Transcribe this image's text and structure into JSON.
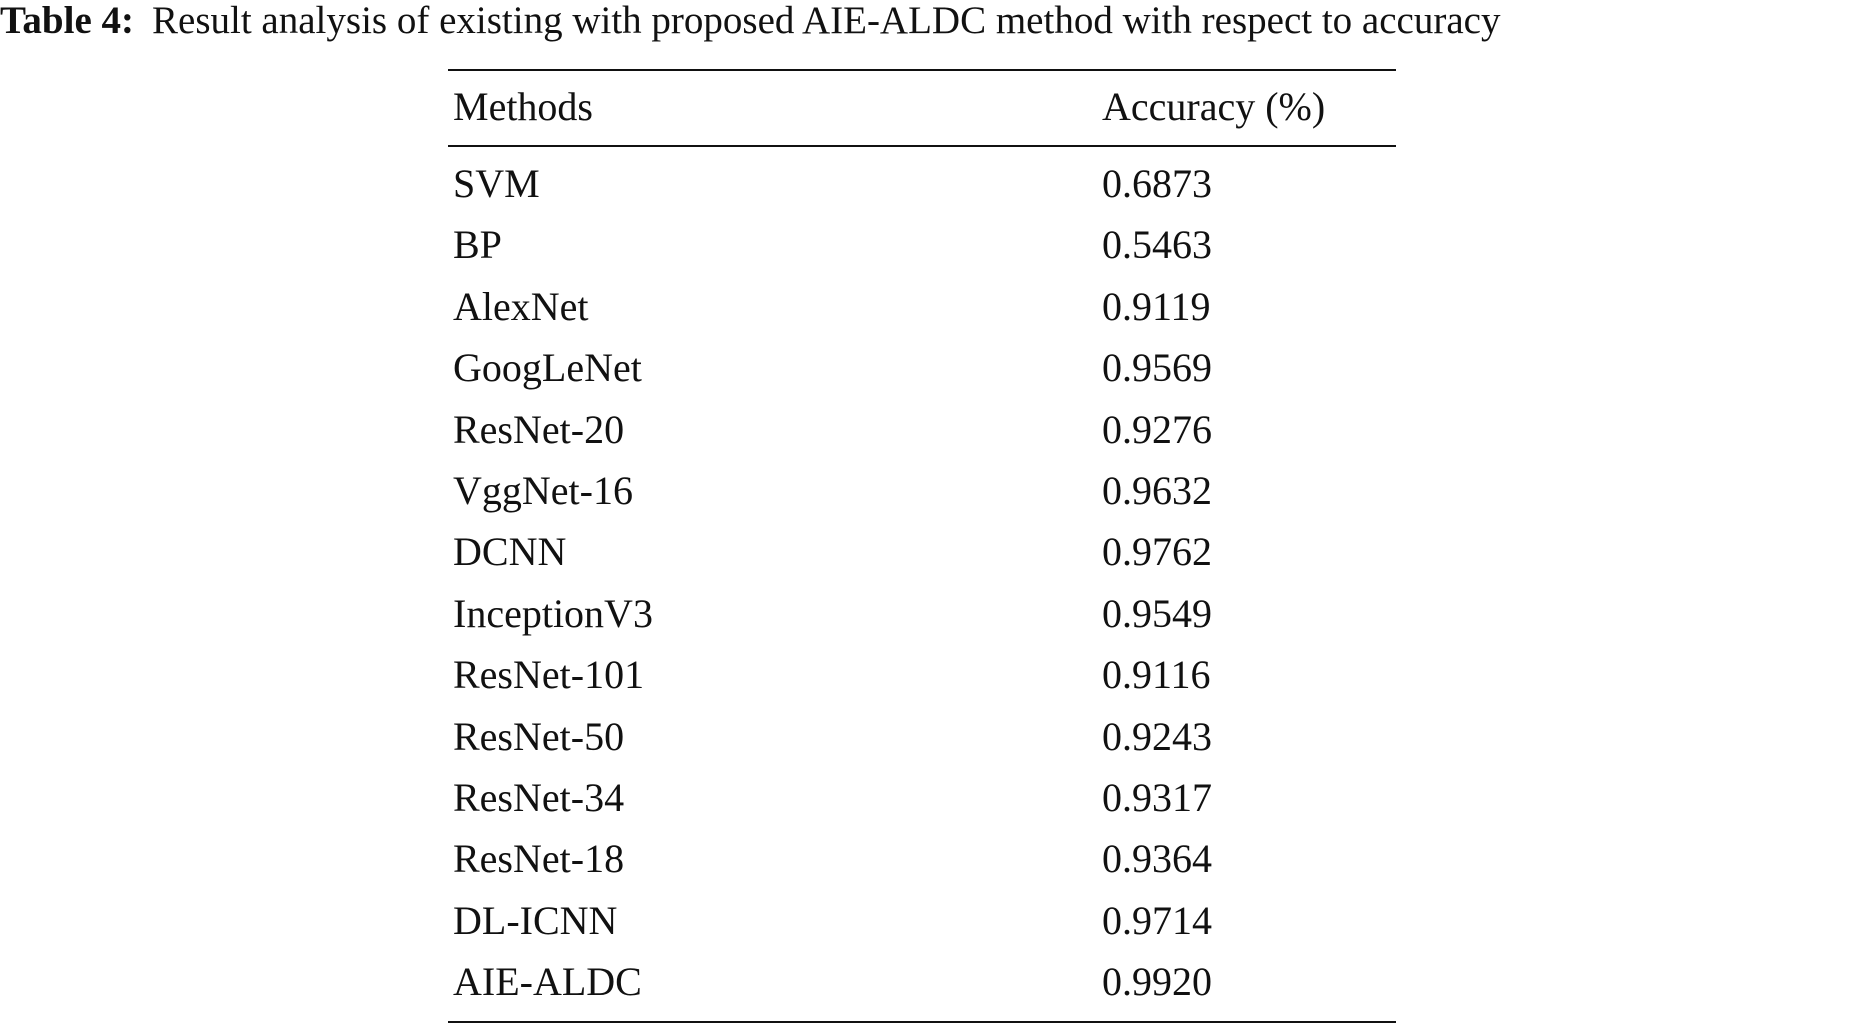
{
  "caption": {
    "label": "Table 4:",
    "text": "Result analysis of existing with proposed AIE-ALDC method with respect to accuracy"
  },
  "table": {
    "header": [
      "Methods",
      "Accuracy (%)"
    ],
    "rows": [
      [
        "SVM",
        "0.6873"
      ],
      [
        "BP",
        "0.5463"
      ],
      [
        "AlexNet",
        "0.9119"
      ],
      [
        "GoogLeNet",
        "0.9569"
      ],
      [
        "ResNet-20",
        "0.9276"
      ],
      [
        "VggNet-16",
        "0.9632"
      ],
      [
        "DCNN",
        "0.9762"
      ],
      [
        "InceptionV3",
        "0.9549"
      ],
      [
        "ResNet-101",
        "0.9116"
      ],
      [
        "ResNet-50",
        "0.9243"
      ],
      [
        "ResNet-34",
        "0.9317"
      ],
      [
        "ResNet-18",
        "0.9364"
      ],
      [
        "DL-ICNN",
        "0.9714"
      ],
      [
        "AIE-ALDC",
        "0.9920"
      ]
    ]
  }
}
